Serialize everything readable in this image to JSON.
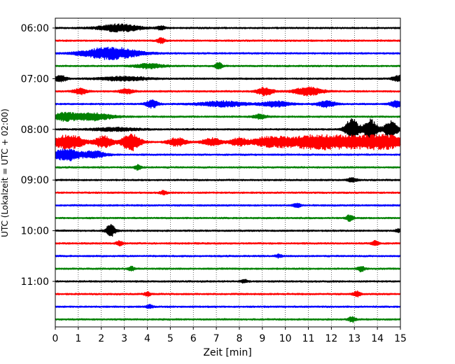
{
  "chart_data": {
    "type": "line",
    "subtype": "helicorder",
    "xlabel": "Zeit  [min]",
    "ylabel": "UTC (Lokalzeit = UTC + 02:00)",
    "xlim": [
      0,
      15
    ],
    "x_ticks": [
      "0",
      "1",
      "2",
      "3",
      "4",
      "5",
      "6",
      "7",
      "8",
      "9",
      "10",
      "11",
      "12",
      "13",
      "14",
      "15"
    ],
    "vertical_grid": "dotted",
    "y_ticks": [
      "06:00",
      "07:00",
      "08:00",
      "09:00",
      "10:00",
      "11:00"
    ],
    "trace_interval_minutes": 15,
    "trace_colors": [
      "#000000",
      "#ff0000",
      "#0000ff",
      "#008000"
    ],
    "traces": [
      {
        "start": "06:00",
        "events": [
          {
            "t": 2.8,
            "a": 0.55,
            "d": 0.9
          },
          {
            "t": 4.6,
            "a": 0.25,
            "d": 0.2
          }
        ]
      },
      {
        "start": "06:15",
        "events": [
          {
            "t": 4.6,
            "a": 0.45,
            "d": 0.15
          }
        ]
      },
      {
        "start": "06:30",
        "events": [
          {
            "t": 2.4,
            "a": 0.9,
            "d": 1.2
          }
        ]
      },
      {
        "start": "06:45",
        "events": [
          {
            "t": 4.1,
            "a": 0.35,
            "d": 0.6
          },
          {
            "t": 7.1,
            "a": 0.5,
            "d": 0.15
          }
        ]
      },
      {
        "start": "07:00",
        "events": [
          {
            "t": 0.2,
            "a": 0.45,
            "d": 0.3
          },
          {
            "t": 3.0,
            "a": 0.3,
            "d": 1.0
          },
          {
            "t": 14.9,
            "a": 0.45,
            "d": 0.25
          }
        ]
      },
      {
        "start": "07:15",
        "events": [
          {
            "t": 1.1,
            "a": 0.45,
            "d": 0.3
          },
          {
            "t": 3.1,
            "a": 0.35,
            "d": 0.3
          },
          {
            "t": 9.1,
            "a": 0.6,
            "d": 0.35
          },
          {
            "t": 11.0,
            "a": 0.6,
            "d": 0.6
          }
        ]
      },
      {
        "start": "07:30",
        "events": [
          {
            "t": 4.2,
            "a": 0.6,
            "d": 0.25
          },
          {
            "t": 7.3,
            "a": 0.4,
            "d": 1.0
          },
          {
            "t": 9.6,
            "a": 0.4,
            "d": 0.6
          },
          {
            "t": 11.8,
            "a": 0.45,
            "d": 0.4
          },
          {
            "t": 14.8,
            "a": 0.5,
            "d": 0.25
          }
        ]
      },
      {
        "start": "07:45",
        "events": [
          {
            "t": 0.4,
            "a": 0.55,
            "d": 0.5
          },
          {
            "t": 1.6,
            "a": 0.55,
            "d": 0.9
          },
          {
            "t": 8.9,
            "a": 0.35,
            "d": 0.3
          }
        ]
      },
      {
        "start": "08:00",
        "events": [
          {
            "t": 2.6,
            "a": 0.25,
            "d": 1.0
          },
          {
            "t": 12.9,
            "a": 1.6,
            "d": 0.3
          },
          {
            "t": 13.7,
            "a": 1.5,
            "d": 0.3
          },
          {
            "t": 14.6,
            "a": 1.3,
            "d": 0.3
          }
        ]
      },
      {
        "start": "08:15",
        "events": [
          {
            "t": 0.3,
            "a": 0.9,
            "d": 0.4
          },
          {
            "t": 0.9,
            "a": 0.8,
            "d": 0.4
          },
          {
            "t": 2.1,
            "a": 0.9,
            "d": 0.4
          },
          {
            "t": 3.3,
            "a": 1.3,
            "d": 0.4
          },
          {
            "t": 5.3,
            "a": 0.6,
            "d": 0.4
          },
          {
            "t": 6.8,
            "a": 0.6,
            "d": 0.4
          },
          {
            "t": 8.0,
            "a": 0.6,
            "d": 0.4
          },
          {
            "t": 9.1,
            "a": 0.7,
            "d": 0.5
          },
          {
            "t": 9.9,
            "a": 0.7,
            "d": 0.5
          },
          {
            "t": 10.9,
            "a": 0.9,
            "d": 0.6
          },
          {
            "t": 11.8,
            "a": 0.9,
            "d": 0.6
          },
          {
            "t": 12.7,
            "a": 0.8,
            "d": 0.6
          },
          {
            "t": 13.7,
            "a": 0.9,
            "d": 0.7
          },
          {
            "t": 14.6,
            "a": 0.8,
            "d": 0.6
          }
        ]
      },
      {
        "start": "08:30",
        "events": [
          {
            "t": 0.5,
            "a": 0.9,
            "d": 0.6
          },
          {
            "t": 1.7,
            "a": 0.5,
            "d": 0.5
          }
        ]
      },
      {
        "start": "08:45",
        "events": [
          {
            "t": 3.6,
            "a": 0.4,
            "d": 0.15
          }
        ]
      },
      {
        "start": "09:00",
        "events": [
          {
            "t": 12.9,
            "a": 0.3,
            "d": 0.2
          }
        ]
      },
      {
        "start": "09:15",
        "events": [
          {
            "t": 4.7,
            "a": 0.3,
            "d": 0.15
          }
        ]
      },
      {
        "start": "09:30",
        "events": [
          {
            "t": 10.5,
            "a": 0.35,
            "d": 0.15
          }
        ]
      },
      {
        "start": "09:45",
        "events": [
          {
            "t": 12.8,
            "a": 0.45,
            "d": 0.15
          }
        ]
      },
      {
        "start": "10:00",
        "events": [
          {
            "t": 2.4,
            "a": 0.9,
            "d": 0.2
          },
          {
            "t": 14.9,
            "a": 0.3,
            "d": 0.1
          }
        ]
      },
      {
        "start": "10:15",
        "events": [
          {
            "t": 2.8,
            "a": 0.35,
            "d": 0.15
          },
          {
            "t": 13.9,
            "a": 0.45,
            "d": 0.15
          }
        ]
      },
      {
        "start": "10:30",
        "events": [
          {
            "t": 9.7,
            "a": 0.25,
            "d": 0.15
          }
        ]
      },
      {
        "start": "10:45",
        "events": [
          {
            "t": 3.3,
            "a": 0.3,
            "d": 0.15
          },
          {
            "t": 13.3,
            "a": 0.4,
            "d": 0.15
          }
        ]
      },
      {
        "start": "11:00",
        "events": [
          {
            "t": 8.2,
            "a": 0.25,
            "d": 0.15
          }
        ]
      },
      {
        "start": "11:15",
        "events": [
          {
            "t": 4.0,
            "a": 0.3,
            "d": 0.15
          },
          {
            "t": 13.1,
            "a": 0.45,
            "d": 0.15
          }
        ]
      },
      {
        "start": "11:30",
        "events": [
          {
            "t": 4.1,
            "a": 0.25,
            "d": 0.15
          }
        ]
      },
      {
        "start": "11:45",
        "events": [
          {
            "t": 12.9,
            "a": 0.4,
            "d": 0.15
          }
        ]
      }
    ]
  }
}
